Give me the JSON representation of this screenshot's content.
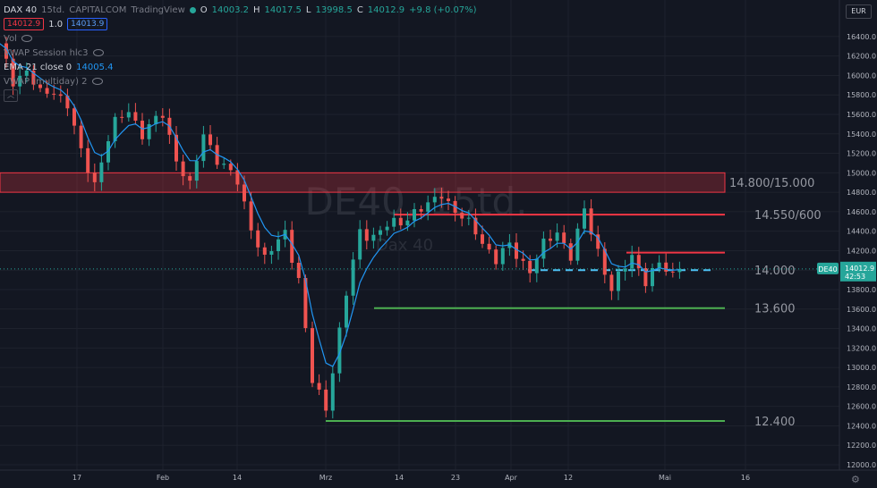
{
  "header": {
    "symbol": "DAX 40",
    "interval": "15td.",
    "exchange": "CAPITALCOM",
    "platform": "TradingView",
    "ohlc": {
      "o_label": "O",
      "o": "14003.2",
      "h_label": "H",
      "h": "14017.5",
      "l_label": "L",
      "l": "13998.5",
      "c_label": "C",
      "c": "14012.9",
      "change": "+9.8 (+0.07%)"
    },
    "bid": "14012.9",
    "spread": "1.0",
    "ask": "14013.9"
  },
  "indicators": [
    {
      "label": "Vol",
      "value": ""
    },
    {
      "label": "VWAP Session hlc3",
      "value": ""
    },
    {
      "label": "EMA 21 close 0",
      "value": "14005.4"
    },
    {
      "label": "VWAP (multiday) 2",
      "value": ""
    }
  ],
  "watermark": {
    "symbol": "DE40, 15td.",
    "name": "Dax 40"
  },
  "currency": "EUR",
  "price_badge": {
    "symbol": "DE40",
    "price": "14012.9",
    "countdown": "42:53"
  },
  "colors": {
    "background": "#131722",
    "up": "#26a69a",
    "down": "#ef5350",
    "ema": "#2196f3",
    "resistance": "#f23645",
    "support": "#4caf50",
    "pivot": "#4fc3f7"
  },
  "chart_data": {
    "type": "line",
    "title": "DAX 40 · 15td. · CAPITALCOM",
    "ylim": [
      12000,
      16500
    ],
    "y_ticks": [
      12000,
      12200,
      12400,
      12600,
      12800,
      13000,
      13200,
      13400,
      13600,
      13800,
      14000,
      14200,
      14400,
      14600,
      14800,
      15000,
      15200,
      15400,
      15600,
      15800,
      16000,
      16200,
      16400
    ],
    "x_tick_labels": [
      "17",
      "Feb",
      "14",
      "Mrz",
      "14",
      "23",
      "Apr",
      "12",
      "Mai",
      "16"
    ],
    "series": [
      {
        "name": "",
        "x": [
          0,
          2,
          4,
          6,
          8,
          10,
          12,
          14,
          16,
          17,
          19,
          21,
          24,
          26,
          28,
          30,
          32,
          35,
          37,
          39,
          42,
          44,
          46,
          48,
          51,
          53,
          55,
          57,
          59,
          61,
          63,
          65,
          67,
          70,
          72,
          73,
          75,
          78,
          80,
          82,
          84,
          86,
          88,
          90,
          93,
          95,
          97,
          99,
          100
        ],
        "values": [
          16300,
          15950,
          16050,
          15800,
          15850,
          15700,
          15200,
          14900,
          15350,
          15500,
          15650,
          15400,
          15600,
          15150,
          14850,
          15400,
          15150,
          14900,
          14450,
          14100,
          14400,
          13900,
          12850,
          12600,
          13750,
          14400,
          14350,
          14450,
          14500,
          14600,
          14650,
          14800,
          14600,
          14400,
          14200,
          14100,
          14250,
          14000,
          14250,
          14400,
          14150,
          14600,
          14200,
          13800,
          14150,
          13900,
          14050,
          13950,
          14013
        ]
      }
    ],
    "levels": [
      {
        "label": "14.800/15.000",
        "low": 14800,
        "high": 15000,
        "kind": "zone"
      },
      {
        "label": "14.550/600",
        "value": 14570,
        "kind": "resistance"
      },
      {
        "label": "",
        "value": 14180,
        "kind": "resistance"
      },
      {
        "label": "14.000",
        "value": 14000,
        "kind": "pivot"
      },
      {
        "label": "13.600",
        "value": 13610,
        "kind": "support"
      },
      {
        "label": "12.400",
        "value": 12450,
        "kind": "support"
      }
    ],
    "last_price": 14012.9
  }
}
